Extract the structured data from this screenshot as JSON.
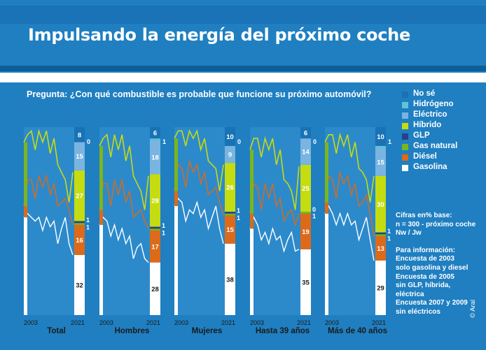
{
  "title": "Impulsando la energía del próximo coche",
  "question": "Pregunta: ¿Con qué combustible es probable que funcione su próximo automóvil?",
  "legend": [
    {
      "label": "No sé",
      "color": "#1872b5"
    },
    {
      "label": "Hidrógeno",
      "color": "#5cc5d8"
    },
    {
      "label": "Eléctrico",
      "color": "#7ab4e0"
    },
    {
      "label": "Híbrido",
      "color": "#c5dc10"
    },
    {
      "label": "GLP",
      "color": "#2b3f8c"
    },
    {
      "label": "Gas natural",
      "color": "#7bb51c"
    },
    {
      "label": "Diésel",
      "color": "#dd6a18"
    },
    {
      "label": "Gasolina",
      "color": "#ffffff"
    }
  ],
  "notes": {
    "base_lines": [
      "Cifras en% base:",
      "n = 300 - próximo coche",
      "Nw / Jw"
    ],
    "info_lines": [
      "Para información:",
      "Encuesta de 2003",
      "solo gasolina y diesel",
      "Encuesta de 2005",
      "sin GLP, híbrida,",
      "eléctrica",
      "Encuesta 2007 y 2009",
      "sin eléctricos"
    ]
  },
  "copyright": "© Aral",
  "chart_data": {
    "type": "stacked-area-with-bar",
    "year_start": "2003",
    "year_end": "2021",
    "segments_order": [
      "Gasolina",
      "Diésel",
      "Gas natural",
      "GLP",
      "Híbrido",
      "Eléctrico",
      "Hidrógeno",
      "No sé"
    ],
    "panels": [
      {
        "label": "Total",
        "bar": [
          32,
          16,
          1,
          1,
          27,
          15,
          0,
          8
        ],
        "gasolina": [
          52,
          54,
          52,
          50,
          52,
          45,
          52,
          47,
          50,
          38,
          46,
          52,
          38,
          32
        ],
        "diesel_top": [
          58,
          72,
          72,
          62,
          74,
          68,
          74,
          64,
          70,
          58,
          60,
          62,
          56,
          48
        ],
        "green_top": [
          92,
          96,
          98,
          88,
          98,
          92,
          98,
          86,
          94,
          80,
          76,
          72,
          60,
          76
        ]
      },
      {
        "label": "Hombres",
        "bar": [
          28,
          17,
          1,
          1,
          28,
          18,
          1,
          6
        ],
        "gasolina": [
          48,
          52,
          50,
          42,
          48,
          40,
          46,
          38,
          42,
          30,
          36,
          38,
          30,
          28
        ],
        "diesel_top": [
          56,
          70,
          70,
          58,
          72,
          64,
          72,
          60,
          66,
          52,
          54,
          56,
          50,
          46
        ],
        "green_top": [
          90,
          94,
          96,
          84,
          96,
          88,
          96,
          82,
          90,
          74,
          70,
          66,
          56,
          74
        ]
      },
      {
        "label": "Mujeres",
        "bar": [
          38,
          15,
          1,
          1,
          26,
          9,
          0,
          10
        ],
        "gasolina": [
          58,
          62,
          60,
          50,
          56,
          54,
          60,
          52,
          56,
          46,
          52,
          58,
          46,
          38
        ],
        "diesel_top": [
          66,
          80,
          78,
          68,
          82,
          76,
          80,
          70,
          76,
          64,
          66,
          68,
          60,
          53
        ],
        "green_top": [
          94,
          98,
          98,
          90,
          98,
          94,
          98,
          88,
          94,
          82,
          80,
          78,
          66,
          80
        ]
      },
      {
        "label": "Hasta 39 años",
        "bar": [
          35,
          19,
          1,
          0,
          25,
          14,
          0,
          6
        ],
        "gasolina": [
          46,
          52,
          48,
          40,
          44,
          38,
          46,
          40,
          42,
          34,
          40,
          44,
          34,
          35
        ],
        "diesel_top": [
          54,
          70,
          68,
          56,
          70,
          62,
          70,
          58,
          62,
          50,
          54,
          56,
          48,
          54
        ],
        "green_top": [
          88,
          94,
          94,
          84,
          94,
          88,
          94,
          80,
          88,
          72,
          70,
          66,
          56,
          79
        ]
      },
      {
        "label": "Más de  40 años",
        "bar": [
          29,
          13,
          1,
          1,
          30,
          15,
          1,
          10
        ],
        "gasolina": [
          54,
          58,
          54,
          48,
          54,
          48,
          54,
          48,
          50,
          40,
          46,
          52,
          40,
          29
        ],
        "diesel_top": [
          60,
          74,
          72,
          62,
          76,
          70,
          74,
          64,
          70,
          58,
          60,
          64,
          54,
          42
        ],
        "green_top": [
          92,
          96,
          96,
          86,
          96,
          90,
          96,
          84,
          92,
          78,
          76,
          72,
          60,
          74
        ]
      }
    ]
  }
}
